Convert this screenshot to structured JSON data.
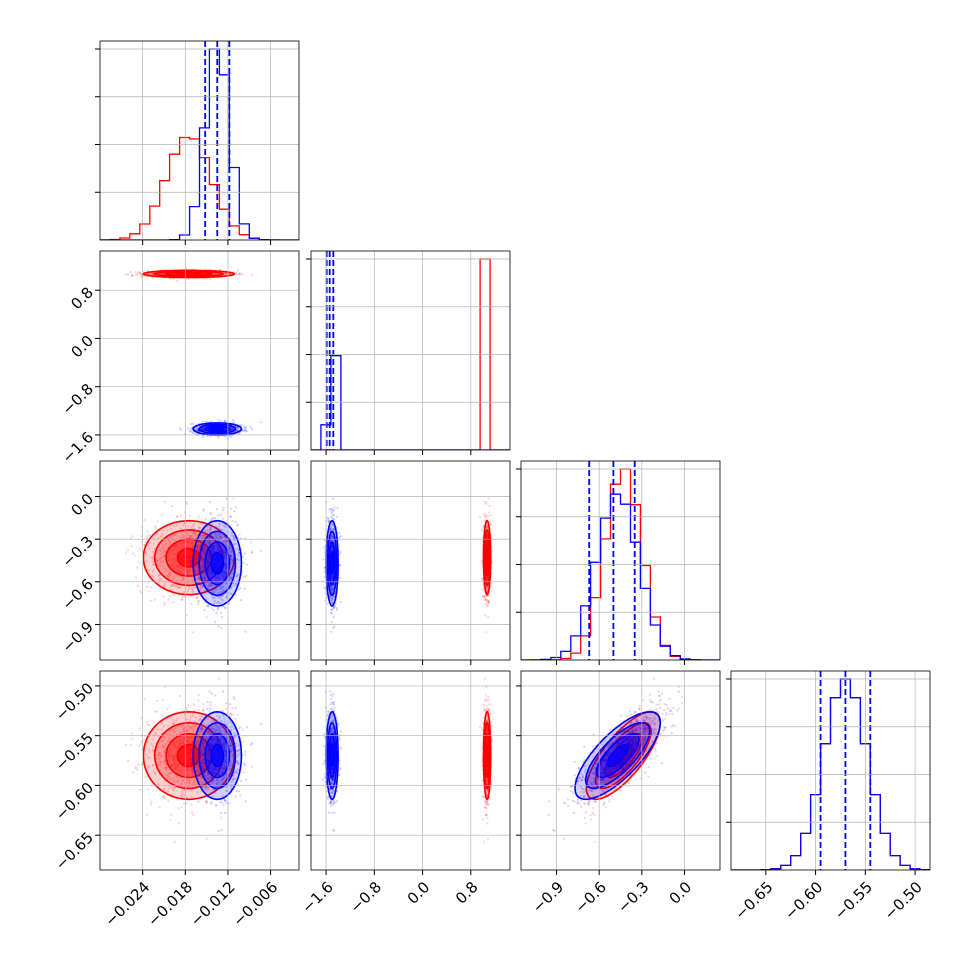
{
  "colors": {
    "red": "#ff0000",
    "blue": "#0000ff",
    "grid": "#b0b0b0",
    "axes": "#000000"
  },
  "chart_data": {
    "type": "corner",
    "grid": true,
    "series": [
      {
        "name": "",
        "color": "#ff0000",
        "means": [
          -0.0175,
          1.07,
          -0.43,
          -0.57
        ],
        "sds": [
          0.0032,
          0.03,
          0.13,
          0.022
        ],
        "corr": [
          [
            1,
            0,
            0,
            0
          ],
          [
            0,
            1,
            0,
            0
          ],
          [
            0,
            0,
            1,
            0.75
          ],
          [
            0,
            0,
            0.75,
            1
          ]
        ]
      },
      {
        "name": "",
        "color": "#0000ff",
        "means": [
          -0.0135,
          -1.5,
          -0.47,
          -0.57
        ],
        "sds": [
          0.0017,
          0.05,
          0.15,
          0.022
        ],
        "corr": [
          [
            1,
            0,
            0,
            0
          ],
          [
            0,
            1,
            0,
            0
          ],
          [
            0,
            0,
            1,
            0.75
          ],
          [
            0,
            0,
            0.75,
            1
          ]
        ]
      }
    ],
    "quantiles_blue": [
      [
        -0.0152,
        -0.0135,
        -0.0118
      ],
      [
        -1.59,
        -1.54,
        -1.48
      ],
      [
        -0.67,
        -0.5,
        -0.35
      ],
      [
        -0.595,
        -0.57,
        -0.545
      ]
    ],
    "variables": [
      {
        "range": [
          -0.03,
          -0.002
        ],
        "ticks": [
          -0.024,
          -0.018,
          -0.012,
          -0.006
        ],
        "tick_labels": [
          "−0.024",
          "−0.018",
          "−0.012",
          "−0.006"
        ]
      },
      {
        "range": [
          -1.85,
          1.45
        ],
        "ticks": [
          -1.6,
          -0.8,
          0.0,
          0.8
        ],
        "tick_labels": [
          "−1.6",
          "−0.8",
          "0.0",
          "0.8"
        ]
      },
      {
        "range": [
          -1.15,
          0.25
        ],
        "ticks": [
          -0.9,
          -0.6,
          -0.3,
          0.0
        ],
        "tick_labels": [
          "−0.9",
          "−0.6",
          "−0.3",
          "0.0"
        ]
      },
      {
        "range": [
          -0.685,
          -0.485
        ],
        "ticks": [
          -0.65,
          -0.6,
          -0.55,
          -0.5
        ],
        "tick_labels": [
          "−0.65",
          "−0.60",
          "−0.55",
          "−0.50"
        ]
      }
    ]
  }
}
